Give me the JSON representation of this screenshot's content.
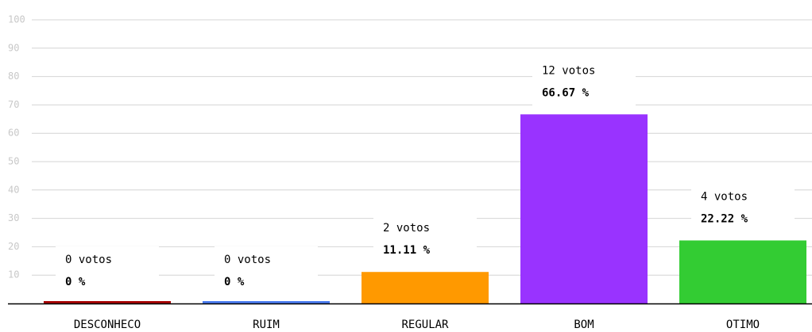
{
  "chart_data": {
    "type": "bar",
    "categories": [
      "DESCONHECO",
      "RUIM",
      "REGULAR",
      "BOM",
      "OTIMO"
    ],
    "values": [
      0,
      0,
      11.11,
      66.67,
      22.22
    ],
    "value_labels": [
      "0 %",
      "0 %",
      "11.11 %",
      "66.67 %",
      "22.22 %"
    ],
    "vote_labels": [
      "0 votos",
      "0 votos",
      "2 votos",
      "12 votos",
      "4 votos"
    ],
    "colors": [
      "#a80000",
      "#4a7cf0",
      "#ff9900",
      "#9933ff",
      "#33cc33"
    ],
    "ylim": [
      0,
      100
    ],
    "yticks": [
      10,
      20,
      30,
      40,
      50,
      60,
      70,
      80,
      90,
      100
    ],
    "grid": true
  }
}
